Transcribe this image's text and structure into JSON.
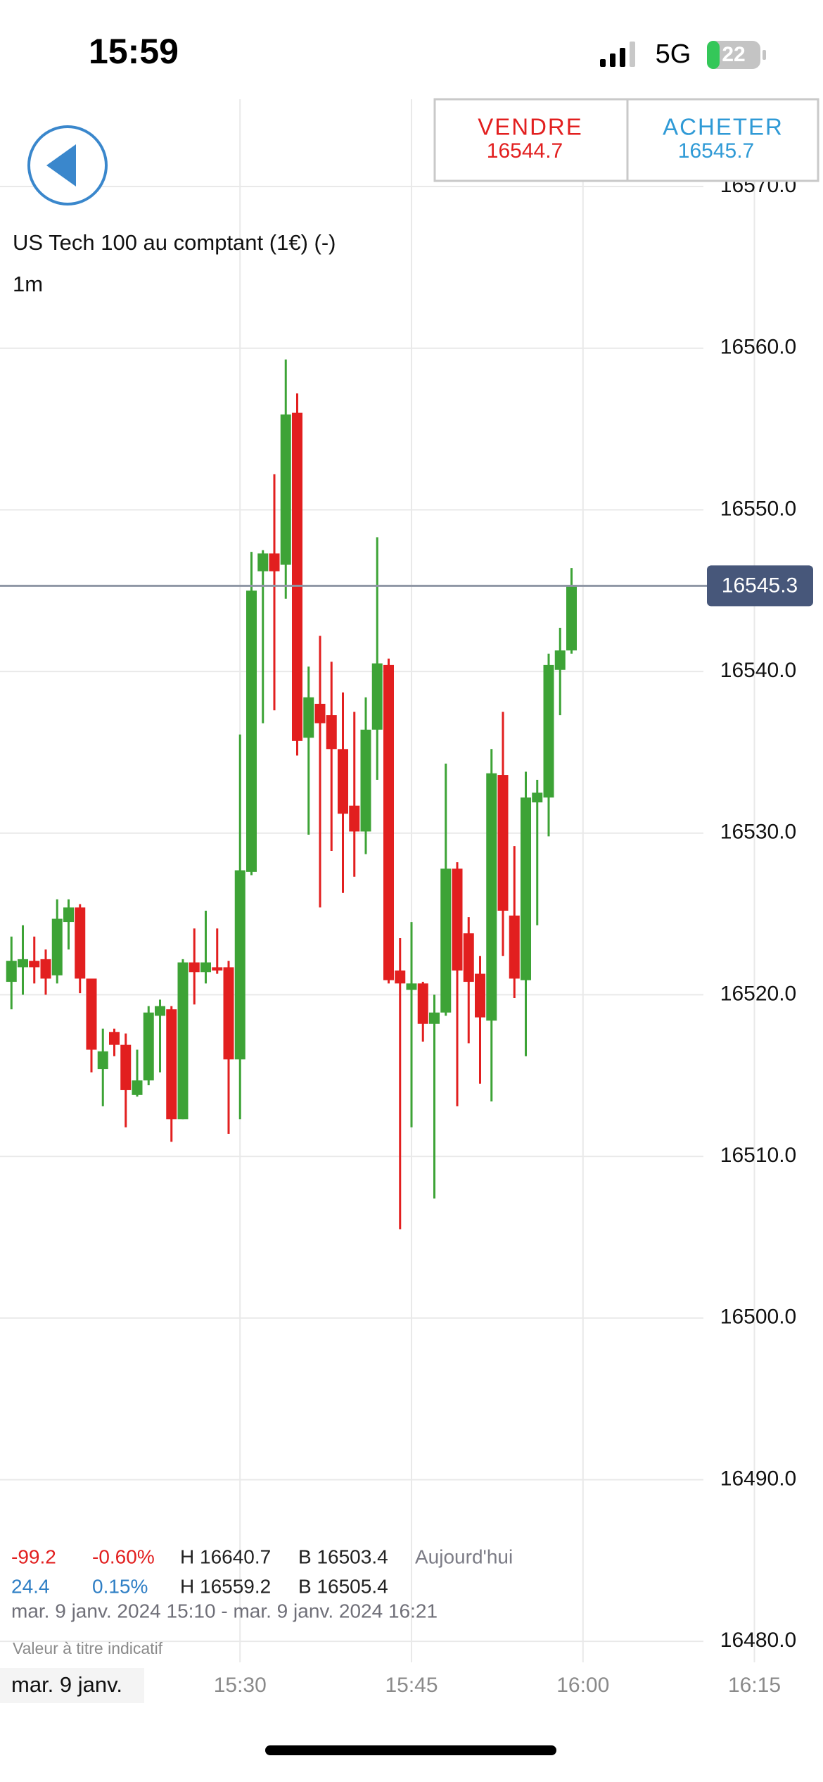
{
  "status_bar": {
    "time": "15:59",
    "network": "5G",
    "battery": "22"
  },
  "trade_panel": {
    "sell_label": "VENDRE",
    "sell_price": "16544.7",
    "buy_label": "ACHETER",
    "buy_price": "16545.7"
  },
  "instrument": {
    "name": "US Tech 100 au comptant (1€) (-)",
    "interval": "1m"
  },
  "stats": {
    "rows": [
      [
        "-99.2",
        "-0.60%",
        "H 16640.7",
        "B 16503.4",
        "Aujourd'hui"
      ],
      [
        "24.4",
        "0.15%",
        "H 16559.2",
        "B 16505.4"
      ]
    ],
    "range": "mar. 9 janv. 2024 15:10 - mar. 9 janv. 2024 16:21",
    "note": "Valeur à titre indicatif",
    "date": "mar. 9 janv."
  },
  "chart_data": {
    "type": "candlestick",
    "x": [
      "15:10",
      "15:11",
      "15:12",
      "15:13",
      "15:14",
      "15:15",
      "15:16",
      "15:17",
      "15:18",
      "15:19",
      "15:20",
      "15:21",
      "15:22",
      "15:23",
      "15:24",
      "15:25",
      "15:26",
      "15:27",
      "15:28",
      "15:29",
      "15:30",
      "15:31",
      "15:32",
      "15:33",
      "15:34",
      "15:35",
      "15:36",
      "15:37",
      "15:38",
      "15:39",
      "15:40",
      "15:41",
      "15:42",
      "15:43",
      "15:44",
      "15:45",
      "15:46",
      "15:47",
      "15:48",
      "15:49",
      "15:50",
      "15:51",
      "15:52",
      "15:53",
      "15:54",
      "15:55",
      "15:56",
      "15:57",
      "15:58",
      "15:59"
    ],
    "open": [
      16520.8,
      16521.7,
      16522.1,
      16522.2,
      16521.2,
      16524.5,
      16525.4,
      16521.0,
      16515.4,
      16517.7,
      16516.9,
      16513.8,
      16514.7,
      16518.7,
      16519.1,
      16512.3,
      16522.0,
      16521.4,
      16521.7,
      16521.7,
      16516.0,
      16527.6,
      16546.2,
      16547.3,
      16546.6,
      16556.0,
      16535.9,
      16538.0,
      16537.3,
      16535.2,
      16531.7,
      16530.1,
      16536.4,
      16540.4,
      16521.5,
      16520.3,
      16520.7,
      16518.2,
      16518.9,
      16527.8,
      16523.8,
      16521.3,
      16518.4,
      16533.6,
      16524.9,
      16520.9,
      16531.9,
      16532.2,
      16540.1,
      16541.3
    ],
    "high": [
      16523.6,
      16524.3,
      16523.6,
      16522.8,
      16525.9,
      16525.9,
      16525.6,
      16521.0,
      16517.9,
      16517.9,
      16517.6,
      16516.6,
      16519.3,
      16519.7,
      16519.3,
      16522.2,
      16524.1,
      16525.2,
      16524.1,
      16522.1,
      16536.1,
      16547.4,
      16547.5,
      16552.2,
      16559.3,
      16557.2,
      16540.3,
      16542.2,
      16540.6,
      16538.7,
      16537.5,
      16538.4,
      16548.3,
      16540.8,
      16523.5,
      16524.5,
      16520.8,
      16520.0,
      16534.3,
      16528.2,
      16524.8,
      16522.4,
      16535.2,
      16537.5,
      16529.2,
      16533.8,
      16533.3,
      16541.1,
      16542.7,
      16546.4
    ],
    "low": [
      16519.1,
      16520.0,
      16520.7,
      16520.0,
      16520.7,
      16522.8,
      16520.1,
      16515.2,
      16513.1,
      16516.2,
      16511.8,
      16513.7,
      16514.4,
      16515.2,
      16510.9,
      16512.3,
      16519.4,
      16520.7,
      16521.3,
      16511.4,
      16512.3,
      16527.4,
      16536.8,
      16537.6,
      16544.5,
      16534.8,
      16529.9,
      16525.4,
      16528.9,
      16526.3,
      16527.3,
      16528.7,
      16533.3,
      16520.7,
      16505.5,
      16511.8,
      16517.1,
      16507.4,
      16518.7,
      16513.1,
      16517.0,
      16514.5,
      16513.4,
      16522.4,
      16519.8,
      16516.2,
      16524.3,
      16529.8,
      16537.3,
      16541.1
    ],
    "close": [
      16522.1,
      16522.2,
      16521.7,
      16521.0,
      16524.7,
      16525.4,
      16521.0,
      16516.6,
      16516.5,
      16516.9,
      16514.1,
      16514.7,
      16518.9,
      16519.3,
      16512.3,
      16522.0,
      16521.4,
      16522.0,
      16521.5,
      16516.0,
      16527.7,
      16545.0,
      16547.3,
      16546.2,
      16555.9,
      16535.7,
      16538.4,
      16536.8,
      16535.2,
      16531.2,
      16530.1,
      16536.4,
      16540.5,
      16520.9,
      16520.7,
      16520.7,
      16518.2,
      16518.9,
      16527.8,
      16521.5,
      16520.8,
      16518.6,
      16533.7,
      16525.2,
      16521.0,
      16532.2,
      16532.5,
      16540.4,
      16541.3,
      16545.3
    ],
    "up_color": "#3da336",
    "down_color": "#e21f1f",
    "last_price": 16545.3,
    "xlim": [
      "15:09",
      "16:21"
    ],
    "xticks": [
      "15:30",
      "15:45",
      "16:00",
      "16:15"
    ],
    "ylim": [
      16478.7,
      16575.4
    ],
    "yticks": [
      {
        "value": 16480,
        "label": "16480.0"
      },
      {
        "value": 16490,
        "label": "16490.0"
      },
      {
        "value": 16500,
        "label": "16500.0"
      },
      {
        "value": 16510,
        "label": "16510.0"
      },
      {
        "value": 16520,
        "label": "16520.0"
      },
      {
        "value": 16530,
        "label": "16530.0"
      },
      {
        "value": 16540,
        "label": "16540.0"
      },
      {
        "value": 16550,
        "label": "16550.0"
      },
      {
        "value": 16560,
        "label": "16560.0"
      },
      {
        "value": 16570,
        "label": "16570.0"
      }
    ],
    "grid": true
  }
}
